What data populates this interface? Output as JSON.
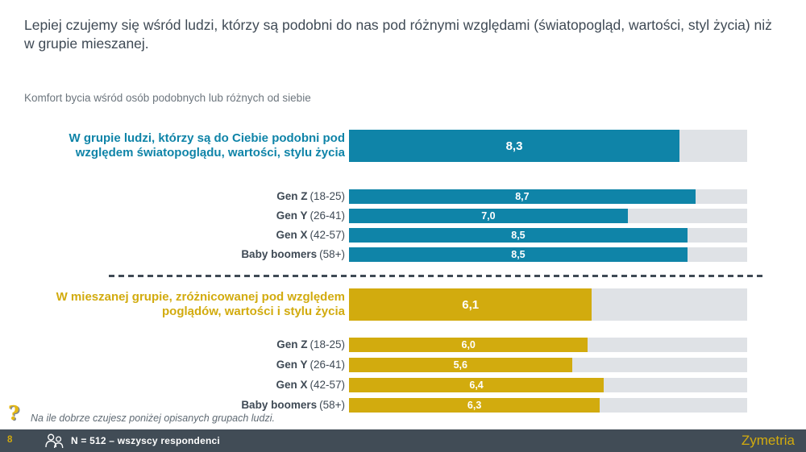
{
  "slide": {
    "title": "Lepiej czujemy się wśród ludzi, którzy są podobni do nas pod różnymi względami (światopogląd, wartości, styl życia) niż w grupie mieszanej.",
    "subtitle": "Komfort bycia wśród osób podobnych lub różnych od siebie",
    "footnote": "Na ile dobrze czujesz poniżej opisanych grupach ludzi.",
    "page_number": "8",
    "sample_note": "N = 512 – wszyscy respondenci",
    "logo_text": "Zymetria"
  },
  "colors": {
    "teal": "#0f84a8",
    "gold": "#d2ab0e",
    "track": "#dfe2e6",
    "footer_bg": "#414c56",
    "text_dark": "#3f4a55",
    "text_muted": "#6d767e",
    "value_text": "#ffffff"
  },
  "icons": {
    "question": "?",
    "people": "two-people-outline"
  },
  "chart_data": {
    "type": "bar",
    "orientation": "horizontal",
    "scale_max": 10,
    "grid": false,
    "value_format": "comma-decimal",
    "groups": [
      {
        "id": "similar-group",
        "color": "#0f84a8",
        "label_lines": [
          "W grupie ludzi, którzy są do Ciebie podobni pod",
          "względem światopoglądu, wartości, stylu życia"
        ],
        "value": 8.3,
        "value_label": "8,3",
        "rows": [
          {
            "name": "Gen Z",
            "range": "(18-25)",
            "value": 8.7,
            "value_label": "8,7"
          },
          {
            "name": "Gen Y",
            "range": "(26-41)",
            "value": 7.0,
            "value_label": "7,0"
          },
          {
            "name": "Gen X",
            "range": "(42-57)",
            "value": 8.5,
            "value_label": "8,5"
          },
          {
            "name": "Baby boomers",
            "range": "(58+)",
            "value": 8.5,
            "value_label": "8,5"
          }
        ]
      },
      {
        "id": "mixed-group",
        "color": "#d2ab0e",
        "label_lines": [
          "W mieszanej grupie, zróżnicowanej pod względem",
          "poglądów, wartości i stylu życia"
        ],
        "value": 6.1,
        "value_label": "6,1",
        "rows": [
          {
            "name": "Gen Z",
            "range": "(18-25)",
            "value": 6.0,
            "value_label": "6,0"
          },
          {
            "name": "Gen Y",
            "range": "(26-41)",
            "value": 5.6,
            "value_label": "5,6"
          },
          {
            "name": "Gen X",
            "range": "(42-57)",
            "value": 6.4,
            "value_label": "6,4"
          },
          {
            "name": "Baby boomers",
            "range": "(58+)",
            "value": 6.3,
            "value_label": "6,3"
          }
        ]
      }
    ]
  }
}
